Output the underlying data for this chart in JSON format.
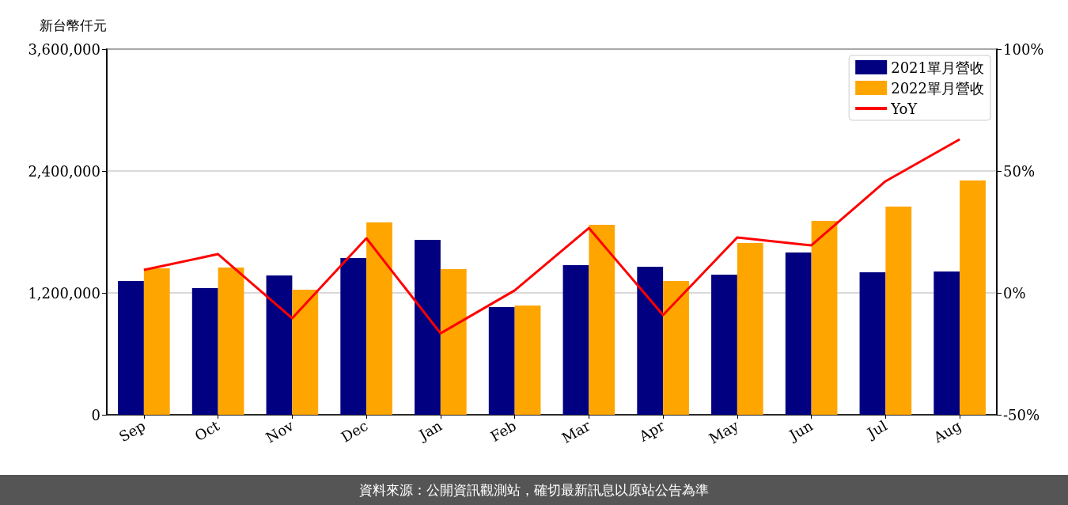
{
  "chart_data": {
    "type": "bar",
    "ylabel": "新台幣仟元",
    "categories": [
      "Sep",
      "Oct",
      "Nov",
      "Dec",
      "Jan",
      "Feb",
      "Mar",
      "Apr",
      "May",
      "Jun",
      "Jul",
      "Aug"
    ],
    "series": [
      {
        "name": "2021單月營收",
        "color": "#000080",
        "values": [
          1317000,
          1247000,
          1371000,
          1543000,
          1722000,
          1060000,
          1473000,
          1457000,
          1379000,
          1597000,
          1403000,
          1410000
        ]
      },
      {
        "name": "2022單月營收",
        "color": "#ffa500",
        "values": [
          1442000,
          1449000,
          1231000,
          1893000,
          1434000,
          1075000,
          1870000,
          1317000,
          1691000,
          1909000,
          2049000,
          2306000
        ]
      },
      {
        "name": "YoY",
        "type": "line",
        "axis": "y2",
        "color": "#ff0000",
        "values": [
          9.4,
          15.9,
          -10.4,
          22.4,
          -16.6,
          1.0,
          26.6,
          -9.1,
          22.7,
          19.5,
          45.8,
          63.0
        ]
      }
    ],
    "ylim": [
      0,
      3600000
    ],
    "yticks": [
      {
        "value": 0,
        "label": "0"
      },
      {
        "value": 1200000,
        "label": "1,200,000"
      },
      {
        "value": 2400000,
        "label": "2,400,000"
      },
      {
        "value": 3600000,
        "label": "3,600,000"
      }
    ],
    "y2lim": [
      -50,
      100
    ],
    "y2ticks": [
      {
        "value": -50,
        "label": "-50%"
      },
      {
        "value": 0,
        "label": "0%"
      },
      {
        "value": 50,
        "label": "50%"
      },
      {
        "value": 100,
        "label": "100%"
      }
    ],
    "grid": "y",
    "legend": "top right",
    "marker": "none",
    "line_style": "solid",
    "annotations": [
      "資料來源：公開資訊觀測站，確切最新訊息以原站公告為準"
    ]
  }
}
